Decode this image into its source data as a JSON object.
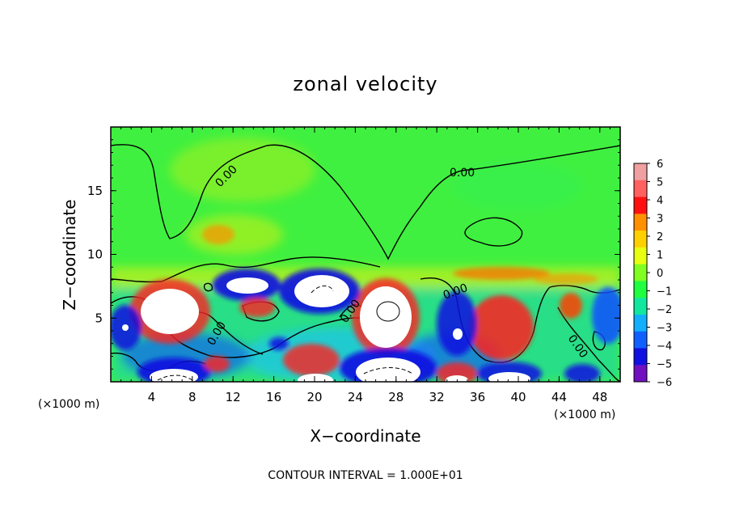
{
  "chart_data": {
    "type": "heatmap",
    "title": "zonal velocity",
    "xlabel": "X−coordinate",
    "ylabel": "Z−coordinate",
    "x_unit_left": "(×1000 m)",
    "x_unit_right": "(×1000 m)",
    "footer": "CONTOUR INTERVAL = 1.000E+01",
    "xlim": [
      0,
      50
    ],
    "ylim": [
      0,
      20
    ],
    "xticks": [
      4,
      8,
      12,
      16,
      20,
      24,
      28,
      32,
      36,
      40,
      44,
      48
    ],
    "xtick_labels": [
      "4",
      "8",
      "12",
      "16",
      "20",
      "24",
      "28",
      "32",
      "36",
      "40",
      "44",
      "48"
    ],
    "yticks": [
      5,
      10,
      15
    ],
    "ytick_labels": [
      "5",
      "10",
      "15"
    ],
    "contour_labels": [
      "0.00",
      "0.00",
      "0.00",
      "0.00",
      "0.00",
      "0.00"
    ],
    "colorbar": {
      "min": -6,
      "max": 6,
      "ticks": [
        6,
        5,
        4,
        3,
        2,
        1,
        0,
        -1,
        -2,
        -3,
        -4,
        -5,
        -6
      ],
      "tick_labels": [
        "6",
        "5",
        "4",
        "3",
        "2",
        "1",
        "0",
        "−1",
        "−2",
        "−3",
        "−4",
        "−5",
        "−6"
      ],
      "colors": [
        "#f0a0a0",
        "#ff6060",
        "#ff1010",
        "#ff9000",
        "#ffd000",
        "#e8ff10",
        "#80ff20",
        "#20ff40",
        "#10e8a0",
        "#10b0ff",
        "#1060ff",
        "#1010e0",
        "#7010c0"
      ]
    },
    "features": [
      {
        "x": 27.5,
        "z": 5.5,
        "value": 6
      },
      {
        "x": 6.5,
        "z": 5.5,
        "value": 6
      },
      {
        "x": 20.5,
        "z": 6.5,
        "value": -6
      },
      {
        "x": 14,
        "z": 7.5,
        "value": -6
      },
      {
        "x": 38.5,
        "z": 4.5,
        "value": 4
      },
      {
        "x": 1.5,
        "z": 4,
        "value": -5
      },
      {
        "x": 33.5,
        "z": 4,
        "value": -5
      },
      {
        "x": 49,
        "z": 5.5,
        "value": -4
      },
      {
        "x": 44.5,
        "z": 6,
        "value": 3
      },
      {
        "x": 11,
        "z": 12.8,
        "value": 2
      },
      {
        "x": 38,
        "z": 8.5,
        "value": 2
      }
    ]
  }
}
